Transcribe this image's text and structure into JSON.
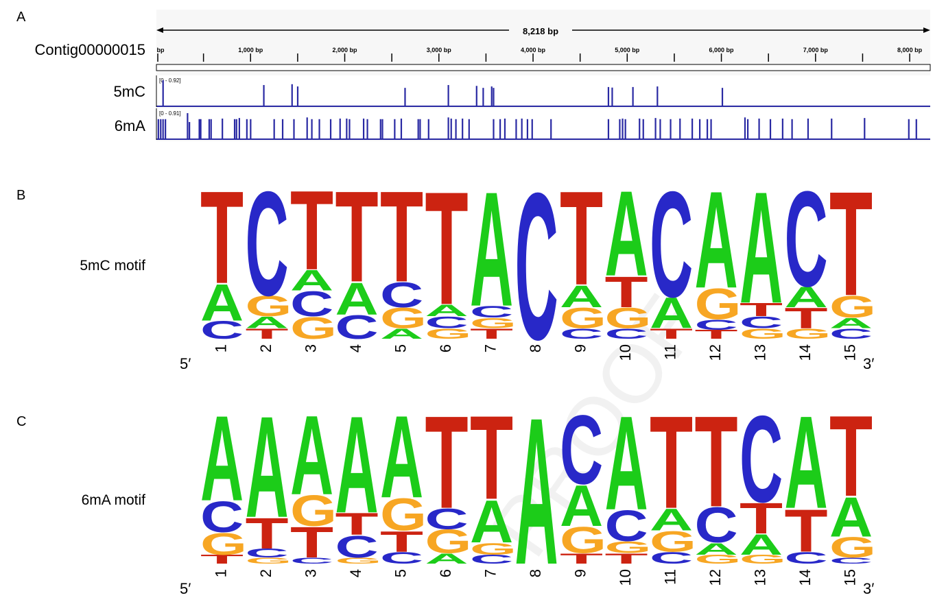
{
  "panel_a": {
    "label": "A",
    "length_label": "8,218 bp",
    "contig_name": "Contig00000015",
    "ruler_ticks": [
      "bp",
      "1,000 bp",
      "2,000 bp",
      "3,000 bp",
      "4,000 bp",
      "5,000 bp",
      "6,000 bp",
      "7,000 bp",
      "8,000 bp"
    ],
    "genome_length": 8218,
    "tracks": [
      {
        "name": "5mC",
        "range_label": "[0 - 0.92]",
        "color": "#2929a3",
        "features": [
          {
            "pos": 70,
            "value": 0.92
          },
          {
            "pos": 1140,
            "value": 0.75
          },
          {
            "pos": 1440,
            "value": 0.78
          },
          {
            "pos": 1500,
            "value": 0.7
          },
          {
            "pos": 2640,
            "value": 0.65
          },
          {
            "pos": 3100,
            "value": 0.75
          },
          {
            "pos": 3400,
            "value": 0.72
          },
          {
            "pos": 3470,
            "value": 0.65
          },
          {
            "pos": 3560,
            "value": 0.7
          },
          {
            "pos": 3580,
            "value": 0.65
          },
          {
            "pos": 4800,
            "value": 0.68
          },
          {
            "pos": 4840,
            "value": 0.66
          },
          {
            "pos": 5060,
            "value": 0.68
          },
          {
            "pos": 5320,
            "value": 0.7
          },
          {
            "pos": 6010,
            "value": 0.65
          }
        ]
      },
      {
        "name": "6mA",
        "range_label": "[0 - 0.91]",
        "color": "#2929a3",
        "features": [
          {
            "pos": 20,
            "value": 0.7
          },
          {
            "pos": 45,
            "value": 0.7
          },
          {
            "pos": 70,
            "value": 0.7
          },
          {
            "pos": 95,
            "value": 0.7
          },
          {
            "pos": 330,
            "value": 0.91
          },
          {
            "pos": 350,
            "value": 0.6
          },
          {
            "pos": 455,
            "value": 0.7
          },
          {
            "pos": 470,
            "value": 0.7
          },
          {
            "pos": 560,
            "value": 0.7
          },
          {
            "pos": 580,
            "value": 0.7
          },
          {
            "pos": 700,
            "value": 0.72
          },
          {
            "pos": 830,
            "value": 0.7
          },
          {
            "pos": 850,
            "value": 0.7
          },
          {
            "pos": 880,
            "value": 0.74
          },
          {
            "pos": 960,
            "value": 0.7
          },
          {
            "pos": 1000,
            "value": 0.7
          },
          {
            "pos": 1250,
            "value": 0.7
          },
          {
            "pos": 1340,
            "value": 0.7
          },
          {
            "pos": 1460,
            "value": 0.7
          },
          {
            "pos": 1600,
            "value": 0.76
          },
          {
            "pos": 1650,
            "value": 0.7
          },
          {
            "pos": 1730,
            "value": 0.7
          },
          {
            "pos": 1850,
            "value": 0.7
          },
          {
            "pos": 1950,
            "value": 0.72
          },
          {
            "pos": 2020,
            "value": 0.72
          },
          {
            "pos": 2050,
            "value": 0.7
          },
          {
            "pos": 2200,
            "value": 0.72
          },
          {
            "pos": 2240,
            "value": 0.7
          },
          {
            "pos": 2380,
            "value": 0.7
          },
          {
            "pos": 2400,
            "value": 0.7
          },
          {
            "pos": 2530,
            "value": 0.7
          },
          {
            "pos": 2600,
            "value": 0.72
          },
          {
            "pos": 2780,
            "value": 0.7
          },
          {
            "pos": 2800,
            "value": 0.7
          },
          {
            "pos": 2890,
            "value": 0.7
          },
          {
            "pos": 3100,
            "value": 0.76
          },
          {
            "pos": 3130,
            "value": 0.72
          },
          {
            "pos": 3180,
            "value": 0.7
          },
          {
            "pos": 3250,
            "value": 0.72
          },
          {
            "pos": 3320,
            "value": 0.7
          },
          {
            "pos": 3580,
            "value": 0.7
          },
          {
            "pos": 3650,
            "value": 0.7
          },
          {
            "pos": 3700,
            "value": 0.72
          },
          {
            "pos": 3820,
            "value": 0.7
          },
          {
            "pos": 3880,
            "value": 0.72
          },
          {
            "pos": 3940,
            "value": 0.7
          },
          {
            "pos": 3990,
            "value": 0.7
          },
          {
            "pos": 4190,
            "value": 0.7
          },
          {
            "pos": 4800,
            "value": 0.7
          },
          {
            "pos": 4920,
            "value": 0.7
          },
          {
            "pos": 4950,
            "value": 0.72
          },
          {
            "pos": 4980,
            "value": 0.7
          },
          {
            "pos": 5130,
            "value": 0.72
          },
          {
            "pos": 5170,
            "value": 0.7
          },
          {
            "pos": 5300,
            "value": 0.74
          },
          {
            "pos": 5350,
            "value": 0.7
          },
          {
            "pos": 5460,
            "value": 0.7
          },
          {
            "pos": 5560,
            "value": 0.72
          },
          {
            "pos": 5690,
            "value": 0.72
          },
          {
            "pos": 5770,
            "value": 0.7
          },
          {
            "pos": 5850,
            "value": 0.7
          },
          {
            "pos": 5890,
            "value": 0.7
          },
          {
            "pos": 6250,
            "value": 0.76
          },
          {
            "pos": 6280,
            "value": 0.7
          },
          {
            "pos": 6400,
            "value": 0.72
          },
          {
            "pos": 6520,
            "value": 0.7
          },
          {
            "pos": 6650,
            "value": 0.72
          },
          {
            "pos": 6750,
            "value": 0.7
          },
          {
            "pos": 6920,
            "value": 0.72
          },
          {
            "pos": 7170,
            "value": 0.72
          },
          {
            "pos": 7520,
            "value": 0.74
          },
          {
            "pos": 7990,
            "value": 0.7
          },
          {
            "pos": 8070,
            "value": 0.7
          }
        ]
      }
    ]
  },
  "panel_b": {
    "label": "B",
    "motif_label": "5mC motif",
    "end_5": "5′",
    "end_3": "3′",
    "positions": [
      "1",
      "2",
      "3",
      "4",
      "5",
      "6",
      "7",
      "8",
      "9",
      "10",
      "11",
      "12",
      "13",
      "14",
      "15"
    ],
    "columns": [
      [
        {
          "b": "C",
          "h": 0.12
        },
        {
          "b": "A",
          "h": 0.25
        },
        {
          "b": "T",
          "h": 0.63
        }
      ],
      [
        {
          "b": "T",
          "h": 0.07
        },
        {
          "b": "A",
          "h": 0.08
        },
        {
          "b": "G",
          "h": 0.14
        },
        {
          "b": "C",
          "h": 0.71
        }
      ],
      [
        {
          "b": "G",
          "h": 0.15
        },
        {
          "b": "C",
          "h": 0.17
        },
        {
          "b": "A",
          "h": 0.14
        },
        {
          "b": "T",
          "h": 0.54
        }
      ],
      [
        {
          "b": "C",
          "h": 0.16
        },
        {
          "b": "A",
          "h": 0.22
        },
        {
          "b": "T",
          "h": 0.62
        }
      ],
      [
        {
          "b": "A",
          "h": 0.07
        },
        {
          "b": "G",
          "h": 0.14
        },
        {
          "b": "C",
          "h": 0.17
        },
        {
          "b": "T",
          "h": 0.62
        }
      ],
      [
        {
          "b": "G",
          "h": 0.07
        },
        {
          "b": "C",
          "h": 0.08
        },
        {
          "b": "A",
          "h": 0.08
        },
        {
          "b": "T",
          "h": 0.77
        }
      ],
      [
        {
          "b": "T",
          "h": 0.07
        },
        {
          "b": "G",
          "h": 0.07
        },
        {
          "b": "C",
          "h": 0.08
        },
        {
          "b": "A",
          "h": 0.78
        }
      ],
      [
        {
          "b": "C",
          "h": 1.0
        }
      ],
      [
        {
          "b": "C",
          "h": 0.07
        },
        {
          "b": "G",
          "h": 0.14
        },
        {
          "b": "A",
          "h": 0.15
        },
        {
          "b": "T",
          "h": 0.64
        }
      ],
      [
        {
          "b": "C",
          "h": 0.07
        },
        {
          "b": "G",
          "h": 0.14
        },
        {
          "b": "T",
          "h": 0.21
        },
        {
          "b": "A",
          "h": 0.58
        }
      ],
      [
        {
          "b": "T",
          "h": 0.07
        },
        {
          "b": "A",
          "h": 0.21
        },
        {
          "b": "C",
          "h": 0.72
        }
      ],
      [
        {
          "b": "T",
          "h": 0.06
        },
        {
          "b": "C",
          "h": 0.07
        },
        {
          "b": "G",
          "h": 0.21
        },
        {
          "b": "A",
          "h": 0.66
        }
      ],
      [
        {
          "b": "G",
          "h": 0.07
        },
        {
          "b": "C",
          "h": 0.08
        },
        {
          "b": "T",
          "h": 0.09
        },
        {
          "b": "A",
          "h": 0.76
        }
      ],
      [
        {
          "b": "G",
          "h": 0.07
        },
        {
          "b": "T",
          "h": 0.14
        },
        {
          "b": "A",
          "h": 0.14
        },
        {
          "b": "C",
          "h": 0.65
        }
      ],
      [
        {
          "b": "C",
          "h": 0.07
        },
        {
          "b": "A",
          "h": 0.07
        },
        {
          "b": "G",
          "h": 0.15
        },
        {
          "b": "T",
          "h": 0.71
        }
      ]
    ]
  },
  "panel_c": {
    "label": "C",
    "motif_label": "6mA motif",
    "end_5": "5′",
    "end_3": "3′",
    "positions": [
      "1",
      "2",
      "3",
      "4",
      "5",
      "6",
      "7",
      "8",
      "9",
      "10",
      "11",
      "12",
      "13",
      "14",
      "15"
    ],
    "columns": [
      [
        {
          "b": "T",
          "h": 0.06
        },
        {
          "b": "G",
          "h": 0.15
        },
        {
          "b": "C",
          "h": 0.21
        },
        {
          "b": "A",
          "h": 0.58
        }
      ],
      [
        {
          "b": "G",
          "h": 0.04
        },
        {
          "b": "C",
          "h": 0.06
        },
        {
          "b": "T",
          "h": 0.21
        },
        {
          "b": "A",
          "h": 0.69
        }
      ],
      [
        {
          "b": "C",
          "h": 0.04
        },
        {
          "b": "T",
          "h": 0.21
        },
        {
          "b": "G",
          "h": 0.21
        },
        {
          "b": "A",
          "h": 0.54
        }
      ],
      [
        {
          "b": "G",
          "h": 0.04
        },
        {
          "b": "C",
          "h": 0.15
        },
        {
          "b": "T",
          "h": 0.15
        },
        {
          "b": "A",
          "h": 0.66
        }
      ],
      [
        {
          "b": "C",
          "h": 0.08
        },
        {
          "b": "T",
          "h": 0.14
        },
        {
          "b": "G",
          "h": 0.22
        },
        {
          "b": "A",
          "h": 0.56
        }
      ],
      [
        {
          "b": "A",
          "h": 0.07
        },
        {
          "b": "G",
          "h": 0.16
        },
        {
          "b": "C",
          "h": 0.14
        },
        {
          "b": "T",
          "h": 0.63
        }
      ],
      [
        {
          "b": "C",
          "h": 0.06
        },
        {
          "b": "G",
          "h": 0.08
        },
        {
          "b": "A",
          "h": 0.29
        },
        {
          "b": "T",
          "h": 0.57
        }
      ],
      [
        {
          "b": "A",
          "h": 1.0
        }
      ],
      [
        {
          "b": "T",
          "h": 0.07
        },
        {
          "b": "G",
          "h": 0.18
        },
        {
          "b": "A",
          "h": 0.28
        },
        {
          "b": "C",
          "h": 0.47
        }
      ],
      [
        {
          "b": "T",
          "h": 0.07
        },
        {
          "b": "G",
          "h": 0.08
        },
        {
          "b": "C",
          "h": 0.21
        },
        {
          "b": "A",
          "h": 0.64
        }
      ],
      [
        {
          "b": "C",
          "h": 0.08
        },
        {
          "b": "G",
          "h": 0.14
        },
        {
          "b": "A",
          "h": 0.15
        },
        {
          "b": "T",
          "h": 0.63
        }
      ],
      [
        {
          "b": "G",
          "h": 0.06
        },
        {
          "b": "A",
          "h": 0.08
        },
        {
          "b": "C",
          "h": 0.24
        },
        {
          "b": "T",
          "h": 0.62
        }
      ],
      [
        {
          "b": "G",
          "h": 0.06
        },
        {
          "b": "A",
          "h": 0.14
        },
        {
          "b": "T",
          "h": 0.21
        },
        {
          "b": "C",
          "h": 0.59
        }
      ],
      [
        {
          "b": "C",
          "h": 0.08
        },
        {
          "b": "T",
          "h": 0.29
        },
        {
          "b": "A",
          "h": 0.63
        }
      ],
      [
        {
          "b": "C",
          "h": 0.04
        },
        {
          "b": "G",
          "h": 0.14
        },
        {
          "b": "A",
          "h": 0.27
        },
        {
          "b": "T",
          "h": 0.55
        }
      ]
    ]
  },
  "colors": {
    "A": "#1ccc19",
    "C": "#2828c8",
    "G": "#f7a623",
    "T": "#cc2311",
    "track": "#2929a3"
  },
  "watermark": "PROOF"
}
